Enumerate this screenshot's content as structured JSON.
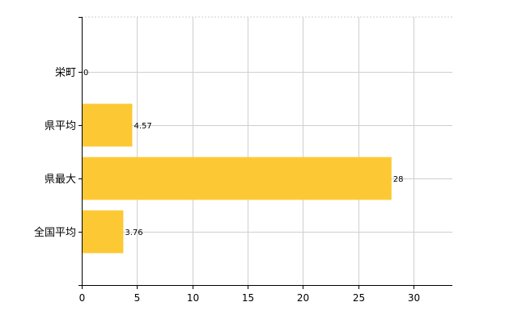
{
  "chart_data": {
    "type": "bar",
    "orientation": "horizontal",
    "categories": [
      "栄町",
      "県平均",
      "県最大",
      "全国平均"
    ],
    "values": [
      0,
      4.57,
      28,
      3.76
    ],
    "data_labels": [
      "0",
      "4.57",
      "28",
      "3.76"
    ],
    "title": "",
    "xlabel": "",
    "ylabel": "",
    "xlim": [
      0,
      33.5
    ],
    "xticks": [
      0,
      5,
      10,
      15,
      20,
      25,
      30
    ],
    "xtick_labels": [
      "0",
      "5",
      "10",
      "15",
      "20",
      "25",
      "30"
    ],
    "grid": true,
    "legend": "none",
    "colors": {
      "bar": "#fcc935",
      "grid": "#cfcfcf",
      "axis": "#000000",
      "text": "#000000"
    }
  }
}
